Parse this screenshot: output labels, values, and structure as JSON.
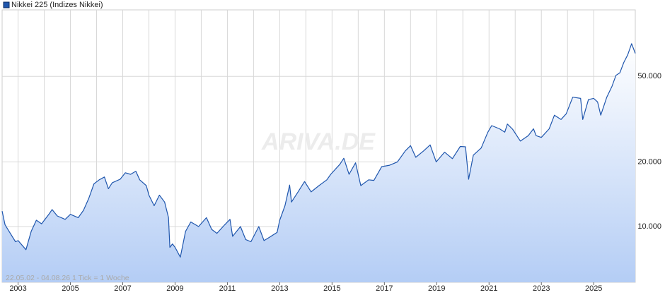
{
  "chart_data": {
    "type": "line",
    "title": "Nikkei 225 (Indizes Nikkei)",
    "watermark": "ARIVA.DE",
    "note": "22.05.02 - 04.08.26   1 Tick = 1 Woche",
    "log_scale": true,
    "grid": true,
    "xlim": [
      2002.39,
      2026.59
    ],
    "xticks": [
      2003,
      2005,
      2007,
      2009,
      2011,
      2013,
      2015,
      2017,
      2019,
      2021,
      2023,
      2025
    ],
    "ylim": [
      5500,
      102000
    ],
    "yticks": [
      {
        "value": 10000,
        "label": "10.000"
      },
      {
        "value": 20000,
        "label": "20.000"
      },
      {
        "value": 50000,
        "label": "50.000"
      }
    ],
    "series": [
      {
        "name": "Nikkei 225 (Indizes Nikkei)",
        "color": "#1f56ad",
        "x": [
          2002.39,
          2002.5,
          2002.7,
          2002.9,
          2003.0,
          2003.3,
          2003.5,
          2003.7,
          2003.9,
          2004.2,
          2004.3,
          2004.5,
          2004.8,
          2005.0,
          2005.3,
          2005.5,
          2005.7,
          2005.9,
          2006.1,
          2006.3,
          2006.45,
          2006.6,
          2006.9,
          2007.1,
          2007.3,
          2007.5,
          2007.65,
          2007.9,
          2008.0,
          2008.2,
          2008.4,
          2008.6,
          2008.75,
          2008.8,
          2008.9,
          2009.0,
          2009.2,
          2009.4,
          2009.6,
          2009.9,
          2010.2,
          2010.4,
          2010.6,
          2010.9,
          2011.1,
          2011.2,
          2011.5,
          2011.7,
          2011.9,
          2012.2,
          2012.4,
          2012.6,
          2012.9,
          2013.0,
          2013.2,
          2013.38,
          2013.45,
          2013.7,
          2013.95,
          2014.2,
          2014.5,
          2014.8,
          2014.95,
          2015.3,
          2015.45,
          2015.65,
          2015.9,
          2016.1,
          2016.4,
          2016.6,
          2016.9,
          2017.2,
          2017.5,
          2017.8,
          2018.0,
          2018.2,
          2018.5,
          2018.75,
          2018.98,
          2019.3,
          2019.6,
          2019.9,
          2020.1,
          2020.22,
          2020.4,
          2020.7,
          2020.95,
          2021.1,
          2021.4,
          2021.6,
          2021.7,
          2021.9,
          2022.2,
          2022.5,
          2022.7,
          2022.8,
          2023.0,
          2023.3,
          2023.5,
          2023.75,
          2023.95,
          2024.2,
          2024.5,
          2024.58,
          2024.8,
          2025.0,
          2025.15,
          2025.27,
          2025.5,
          2025.7,
          2025.85,
          2026.0,
          2026.15,
          2026.3,
          2026.45,
          2026.59
        ],
        "values": [
          11800,
          10200,
          9300,
          8500,
          8600,
          7800,
          9500,
          10700,
          10300,
          11500,
          12000,
          11200,
          10800,
          11400,
          11000,
          11900,
          13500,
          15800,
          16500,
          17000,
          15000,
          16000,
          16600,
          17800,
          17500,
          18100,
          16500,
          15500,
          14000,
          12500,
          14000,
          13000,
          11000,
          8000,
          8300,
          8000,
          7200,
          9500,
          10500,
          10000,
          11000,
          9700,
          9300,
          10200,
          10800,
          9000,
          10000,
          8700,
          8500,
          10000,
          8600,
          8900,
          9400,
          10700,
          12500,
          15600,
          13000,
          14500,
          16200,
          14500,
          15500,
          16500,
          17500,
          19500,
          20800,
          17500,
          19800,
          15500,
          16500,
          16400,
          19000,
          19300,
          20000,
          22500,
          23800,
          21000,
          22500,
          24000,
          20000,
          22200,
          20700,
          23600,
          23500,
          16600,
          21500,
          23200,
          27400,
          29500,
          28500,
          27500,
          30000,
          28400,
          25000,
          26500,
          28500,
          26500,
          26000,
          28500,
          33000,
          31500,
          33500,
          40000,
          39500,
          31500,
          39000,
          39500,
          38000,
          33000,
          40000,
          45000,
          50500,
          52000,
          58000,
          63000,
          71000,
          64000
        ]
      }
    ]
  }
}
